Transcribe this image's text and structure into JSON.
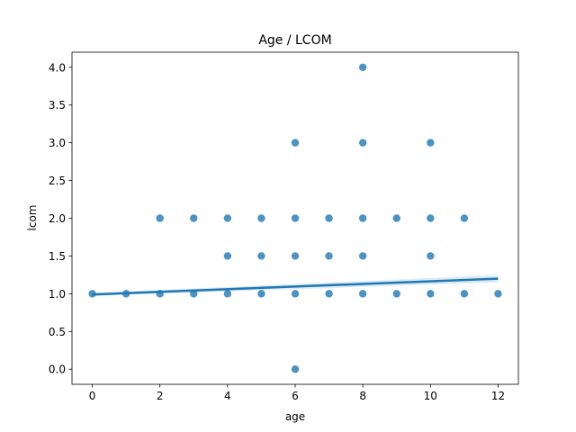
{
  "chart_data": {
    "type": "scatter",
    "title": "Age / LCOM",
    "xlabel": "age",
    "ylabel": "lcom",
    "xlim": [
      -0.6,
      12.6
    ],
    "ylim": [
      -0.2,
      4.2
    ],
    "x_ticks": [
      0,
      2,
      4,
      6,
      8,
      10,
      12
    ],
    "y_ticks": [
      "0.0",
      "0.5",
      "1.0",
      "1.5",
      "2.0",
      "2.5",
      "3.0",
      "3.5",
      "4.0"
    ],
    "grid": false,
    "color": "#1f77b4",
    "points": [
      {
        "x": 0,
        "y": 1.0
      },
      {
        "x": 1,
        "y": 1.0
      },
      {
        "x": 2,
        "y": 1.0
      },
      {
        "x": 2,
        "y": 2.0
      },
      {
        "x": 3,
        "y": 1.0
      },
      {
        "x": 3,
        "y": 2.0
      },
      {
        "x": 4,
        "y": 1.0
      },
      {
        "x": 4,
        "y": 1.5
      },
      {
        "x": 4,
        "y": 2.0
      },
      {
        "x": 5,
        "y": 1.0
      },
      {
        "x": 5,
        "y": 1.5
      },
      {
        "x": 5,
        "y": 2.0
      },
      {
        "x": 6,
        "y": 0.0
      },
      {
        "x": 6,
        "y": 1.0
      },
      {
        "x": 6,
        "y": 1.5
      },
      {
        "x": 6,
        "y": 2.0
      },
      {
        "x": 6,
        "y": 3.0
      },
      {
        "x": 7,
        "y": 1.0
      },
      {
        "x": 7,
        "y": 1.5
      },
      {
        "x": 7,
        "y": 2.0
      },
      {
        "x": 8,
        "y": 1.0
      },
      {
        "x": 8,
        "y": 1.5
      },
      {
        "x": 8,
        "y": 2.0
      },
      {
        "x": 8,
        "y": 3.0
      },
      {
        "x": 8,
        "y": 4.0
      },
      {
        "x": 9,
        "y": 1.0
      },
      {
        "x": 9,
        "y": 2.0
      },
      {
        "x": 10,
        "y": 1.0
      },
      {
        "x": 10,
        "y": 1.5
      },
      {
        "x": 10,
        "y": 2.0
      },
      {
        "x": 10,
        "y": 3.0
      },
      {
        "x": 11,
        "y": 1.0
      },
      {
        "x": 11,
        "y": 2.0
      },
      {
        "x": 12,
        "y": 1.0
      }
    ],
    "regression": {
      "x": [
        0,
        12
      ],
      "y": [
        0.99,
        1.2
      ],
      "ci_upper": [
        1.01,
        1.25
      ],
      "ci_lower": [
        0.97,
        1.15
      ]
    }
  }
}
